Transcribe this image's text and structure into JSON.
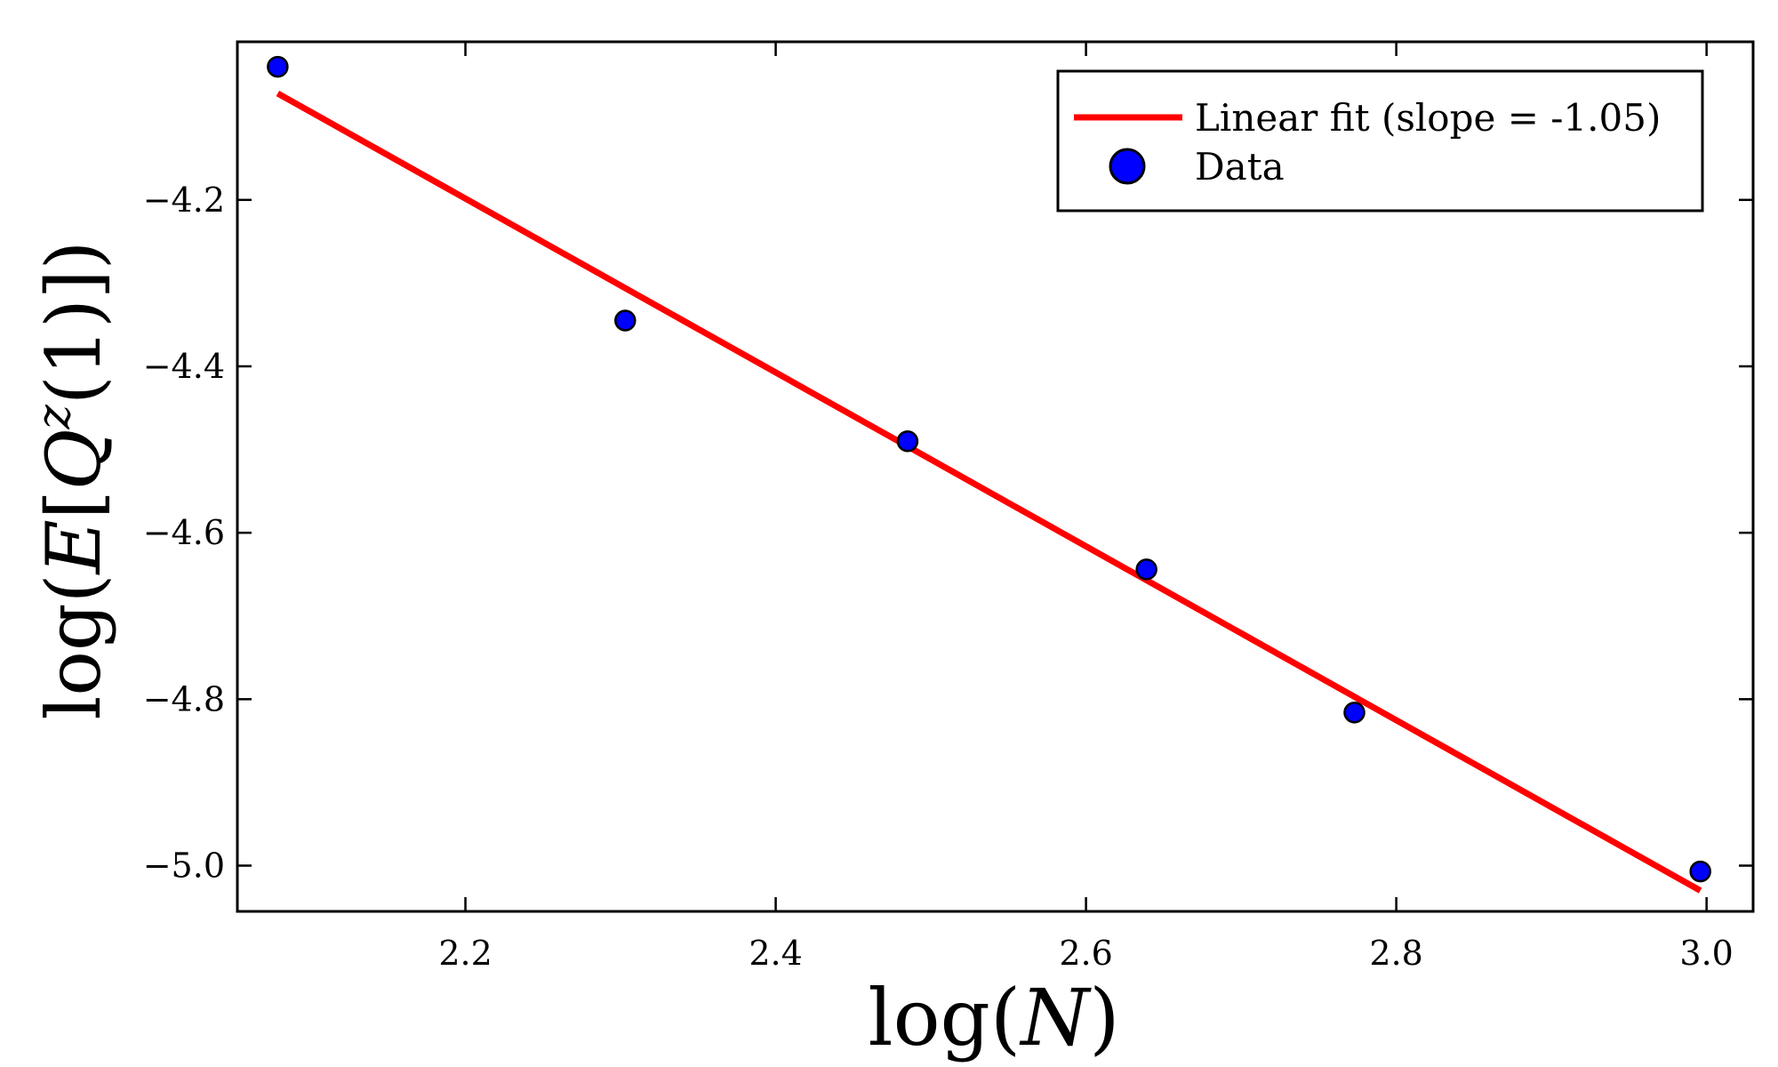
{
  "chart_data": {
    "type": "scatter",
    "title": "",
    "xlabel_prefix": "log(",
    "xlabel_var": "N",
    "xlabel_suffix": ")",
    "ylabel_prefix": "log(",
    "ylabel_e": "E",
    "ylabel_open": "[",
    "ylabel_q": "Q",
    "ylabel_sup": "z",
    "ylabel_arg": "(1)",
    "ylabel_close": "])",
    "xlim": [
      2.053,
      3.03
    ],
    "ylim": [
      -5.055,
      -4.01
    ],
    "xticks": [
      2.2,
      2.4,
      2.6,
      2.8,
      3.0
    ],
    "xtick_labels": [
      "2.2",
      "2.4",
      "2.6",
      "2.8",
      "3.0"
    ],
    "yticks": [
      -4.2,
      -4.4,
      -4.6,
      -4.8,
      -5.0
    ],
    "ytick_labels": [
      "−4.2",
      "−4.4",
      "−4.6",
      "−4.8",
      "−5.0"
    ],
    "grid": false,
    "legend_position": "top-right",
    "series": [
      {
        "name": "Linear fit (slope = -1.05)",
        "kind": "line",
        "color": "#ff0000",
        "x": [
          2.079,
          2.996
        ],
        "y": [
          -4.072,
          -5.03
        ]
      },
      {
        "name": "Data",
        "kind": "scatter",
        "color": "#0000ff",
        "edge_color": "#000000",
        "x": [
          2.079,
          2.303,
          2.485,
          2.639,
          2.773,
          2.996
        ],
        "y": [
          -4.04,
          -4.345,
          -4.49,
          -4.644,
          -4.816,
          -5.007
        ]
      }
    ]
  }
}
